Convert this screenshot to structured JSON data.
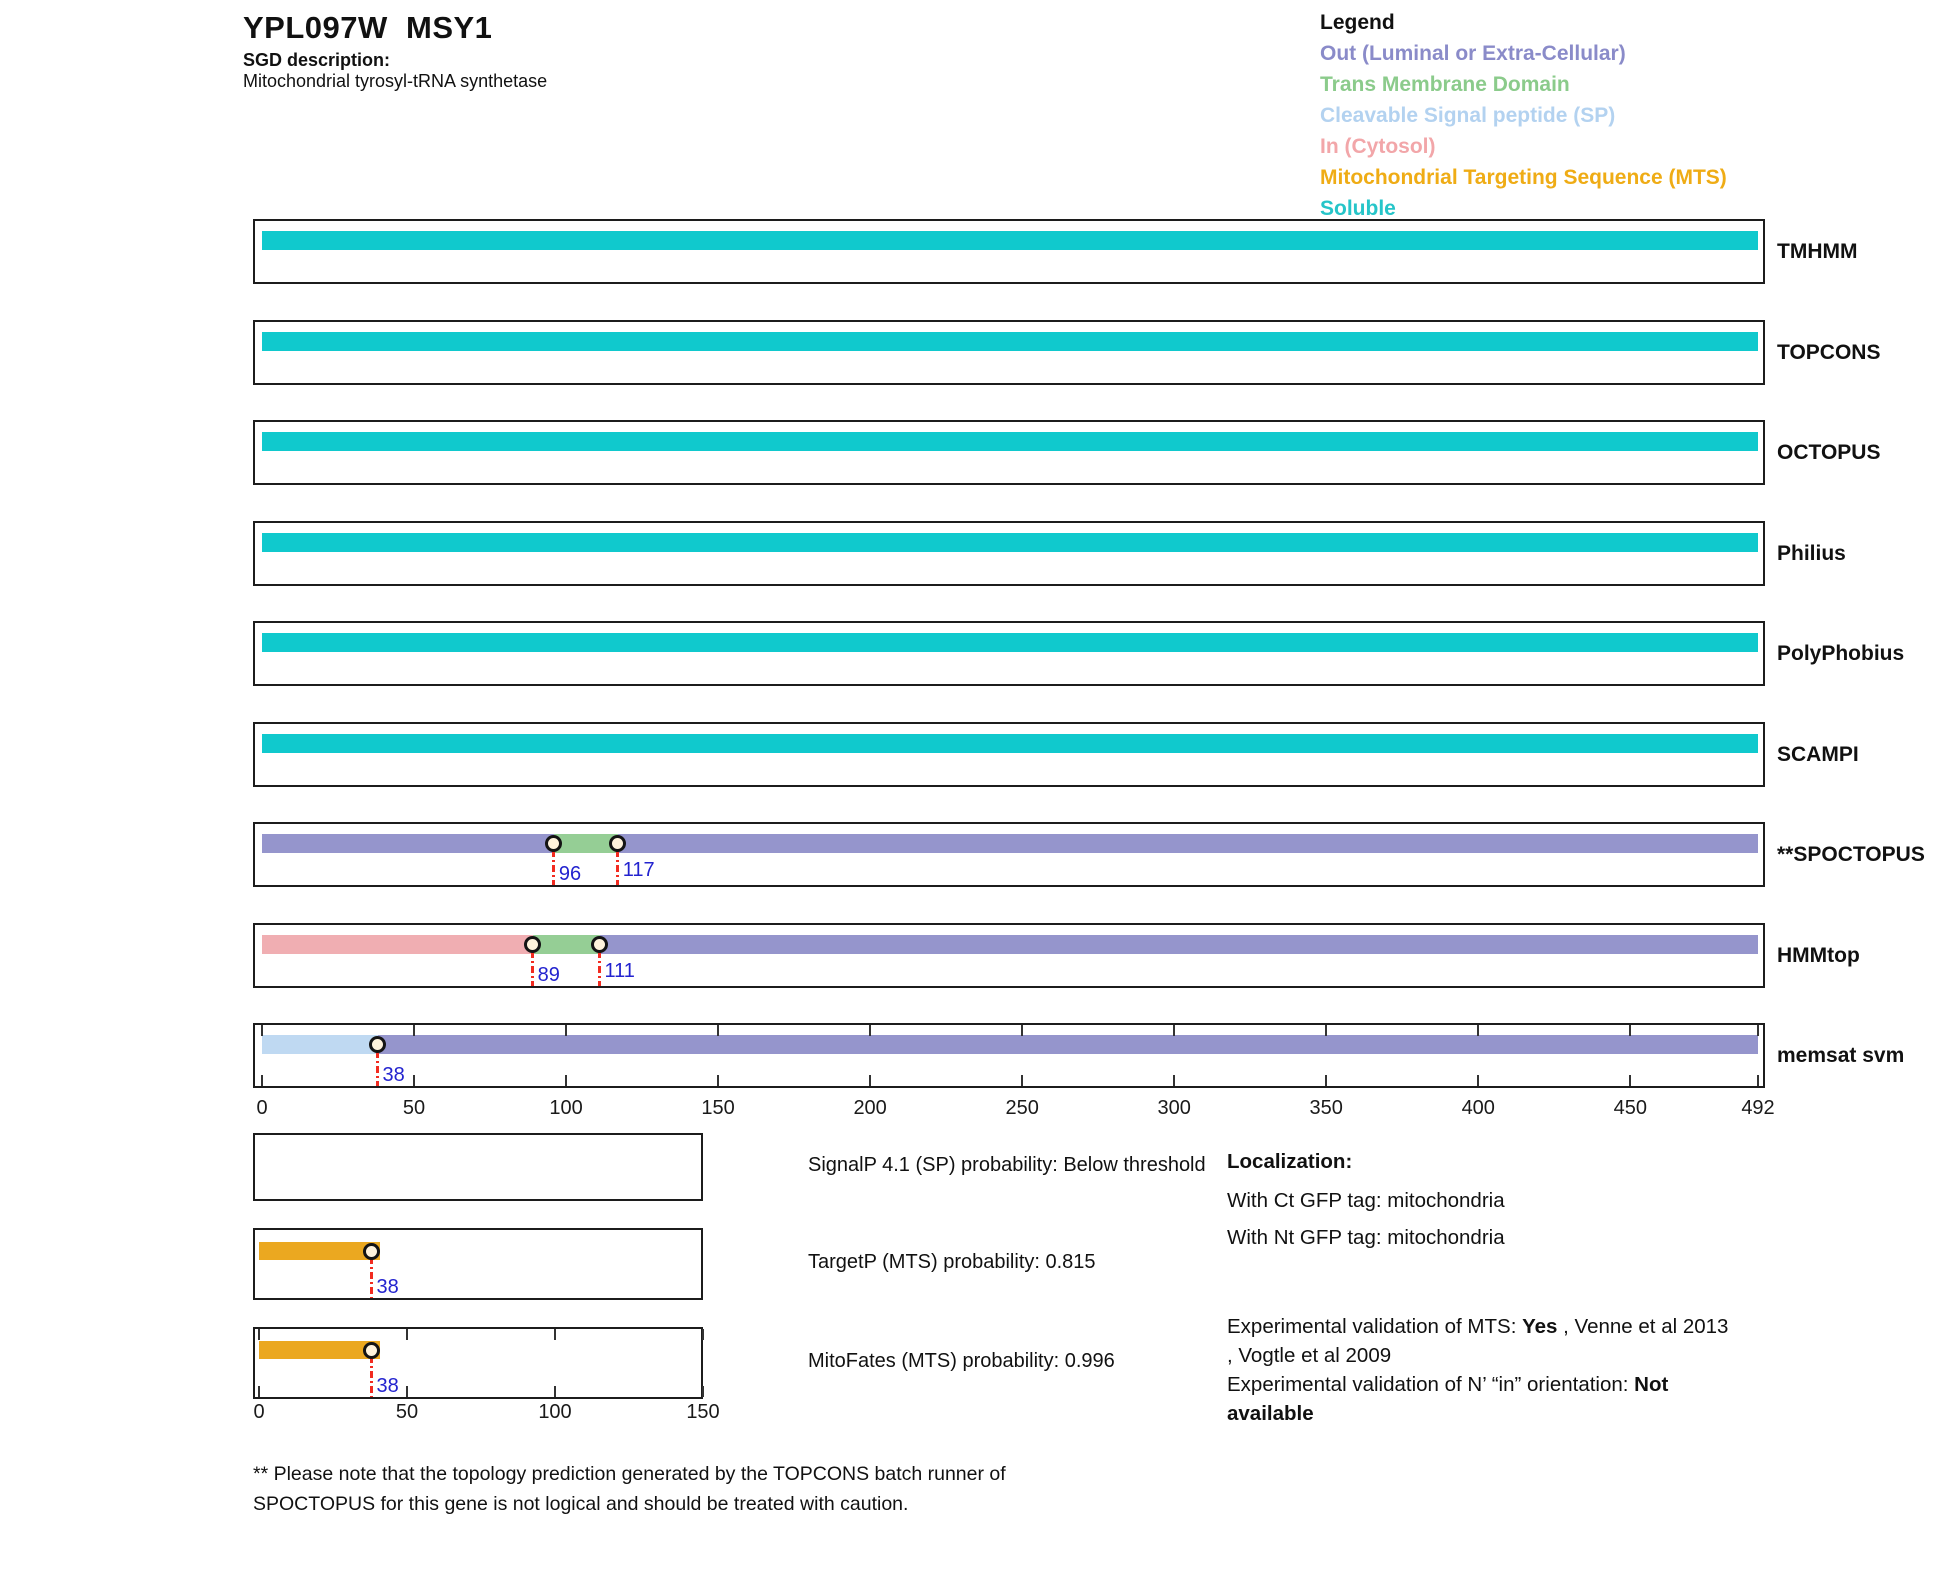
{
  "header": {
    "title": "YPL097W  MSY1",
    "sgd_label": "SGD description:",
    "sgd_description": "Mitochondrial tyrosyl-tRNA synthetase"
  },
  "legend": {
    "title": "Legend",
    "items": [
      {
        "label": "Out (Luminal or Extra-Cellular)",
        "color": "#8a8bc9"
      },
      {
        "label": "Trans Membrane Domain",
        "color": "#8bcb8b"
      },
      {
        "label": "Cleavable Signal peptide (SP)",
        "color": "#b3d2f0"
      },
      {
        "label": "In (Cytosol)",
        "color": "#f2a6a9"
      },
      {
        "label": "Mitochondrial Targeting Sequence (MTS)",
        "color": "#efac15"
      },
      {
        "label": "Soluble",
        "color": "#26c5c9"
      }
    ]
  },
  "colors": {
    "out": "#9595cc",
    "tm": "#95ce95",
    "sp": "#bfd9f2",
    "in": "#f0aeb2",
    "mts": "#eba820",
    "soluble": "#10c9cd",
    "marker_fill": "#fff3dc",
    "guide_line": "#f22b20",
    "position_label": "#2323cf"
  },
  "chart_data": {
    "type": "topology-tracks",
    "sequence_length": 492,
    "x_axis": {
      "ticks": [
        0,
        50,
        100,
        150,
        200,
        250,
        300,
        350,
        400,
        450,
        492
      ],
      "max": 492
    },
    "tracks": [
      {
        "name": "TMHMM",
        "segments": [
          {
            "region": "soluble",
            "start": 0,
            "end": 492
          }
        ],
        "markers": [],
        "ticks": false
      },
      {
        "name": "TOPCONS",
        "segments": [
          {
            "region": "soluble",
            "start": 0,
            "end": 492
          }
        ],
        "markers": [],
        "ticks": false
      },
      {
        "name": "OCTOPUS",
        "segments": [
          {
            "region": "soluble",
            "start": 0,
            "end": 492
          }
        ],
        "markers": [],
        "ticks": false
      },
      {
        "name": "Philius",
        "segments": [
          {
            "region": "soluble",
            "start": 0,
            "end": 492
          }
        ],
        "markers": [],
        "ticks": false
      },
      {
        "name": "PolyPhobius",
        "segments": [
          {
            "region": "soluble",
            "start": 0,
            "end": 492
          }
        ],
        "markers": [],
        "ticks": false
      },
      {
        "name": "SCAMPI",
        "segments": [
          {
            "region": "soluble",
            "start": 0,
            "end": 492
          }
        ],
        "markers": [],
        "ticks": false
      },
      {
        "name": "**SPOCTOPUS",
        "segments": [
          {
            "region": "out",
            "start": 0,
            "end": 96
          },
          {
            "region": "tm",
            "start": 96,
            "end": 117
          },
          {
            "region": "out",
            "start": 117,
            "end": 492
          }
        ],
        "markers": [
          {
            "pos": 96,
            "label": "96",
            "level": "low"
          },
          {
            "pos": 117,
            "label": "117",
            "level": "high"
          }
        ],
        "ticks": false
      },
      {
        "name": "HMMtop",
        "segments": [
          {
            "region": "in",
            "start": 0,
            "end": 89
          },
          {
            "region": "tm",
            "start": 89,
            "end": 111
          },
          {
            "region": "out",
            "start": 111,
            "end": 492
          }
        ],
        "markers": [
          {
            "pos": 89,
            "label": "89",
            "level": "low"
          },
          {
            "pos": 111,
            "label": "111",
            "level": "high"
          }
        ],
        "ticks": false
      },
      {
        "name": "memsat svm",
        "segments": [
          {
            "region": "sp",
            "start": 0,
            "end": 38
          },
          {
            "region": "out",
            "start": 38,
            "end": 492
          }
        ],
        "markers": [
          {
            "pos": 38,
            "label": "38",
            "level": "low"
          }
        ],
        "ticks": true
      }
    ],
    "probability_panels": {
      "x_axis": {
        "ticks": [
          0,
          50,
          100,
          150
        ],
        "max": 150
      },
      "panels": [
        {
          "name": "SignalP",
          "label": "SignalP 4.1 (SP) probability: Below threshold",
          "segments": [],
          "markers": [],
          "ticks": false
        },
        {
          "name": "TargetP",
          "label": "TargetP (MTS) probability: 0.815",
          "segments": [
            {
              "region": "mts",
              "start": 0,
              "end": 41
            }
          ],
          "markers": [
            {
              "pos": 38,
              "label": "38",
              "level": "low"
            }
          ],
          "ticks": false
        },
        {
          "name": "MitoFates",
          "label": "MitoFates (MTS) probability: 0.996",
          "segments": [
            {
              "region": "mts",
              "start": 0,
              "end": 41
            }
          ],
          "markers": [
            {
              "pos": 38,
              "label": "38",
              "level": "low"
            }
          ],
          "ticks": true
        }
      ]
    }
  },
  "localization": {
    "title": "Localization:",
    "ct": "With Ct GFP tag: mitochondria",
    "nt": "With Nt GFP tag: mitochondria"
  },
  "validation": {
    "mts_prefix": "Experimental validation of MTS: ",
    "mts_value": "Yes",
    "mts_suffix": " , Venne et al 2013",
    "mts_line2": ", Vogtle et al 2009",
    "orient_prefix": "Experimental validation of N’ “in” orientation: ",
    "orient_value": "Not",
    "orient_value2": "available"
  },
  "footnote": {
    "line1": "** Please note that the topology prediction generated by the TOPCONS batch runner of",
    "line2": "SPOCTOPUS for this gene is not logical and should be treated with caution."
  }
}
